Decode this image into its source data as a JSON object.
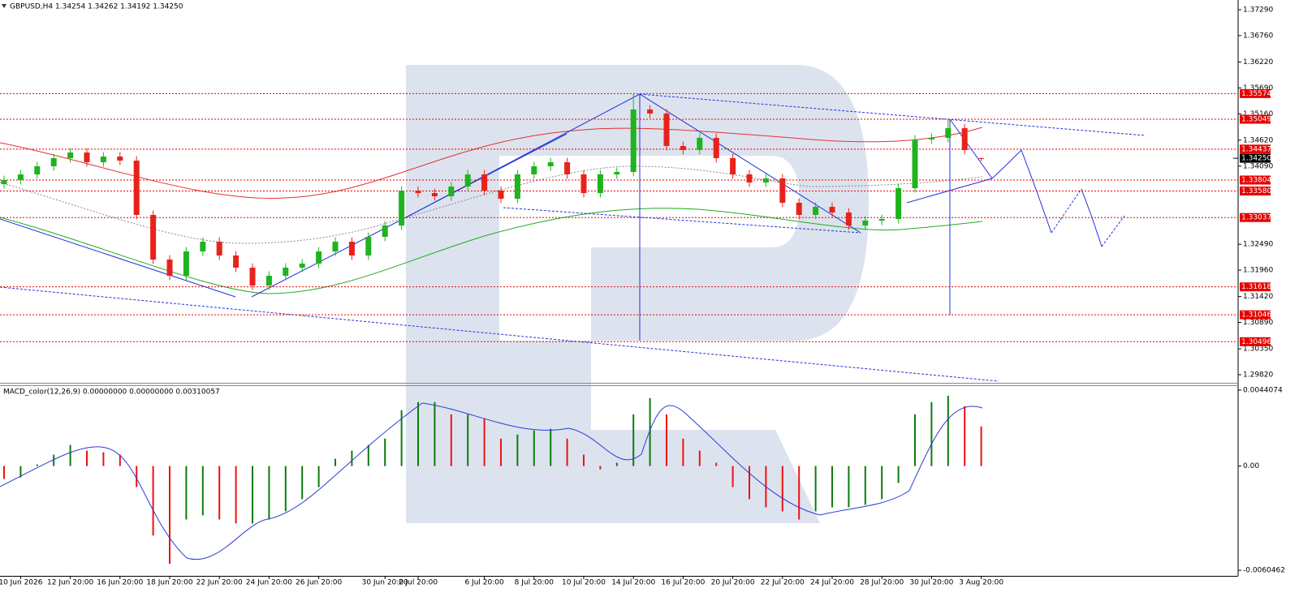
{
  "chart_data": [
    {
      "type": "candlestick",
      "title": "GBPUSD,H4  1.34254 1.34262 1.34192 1.34250",
      "categories": [
        null,
        "10 Jun 2026",
        null,
        null,
        "12 Jun 20:00",
        null,
        null,
        "16 Jun 20:00",
        null,
        null,
        "18 Jun 20:00",
        null,
        null,
        "22 Jun 20:00",
        null,
        null,
        "24 Jun 20:00",
        null,
        null,
        "26 Jun 20:00",
        null,
        null,
        null,
        "30 Jun 20:00",
        null,
        "2 Jul 20:00",
        null,
        null,
        null,
        "6 Jul 20:00",
        null,
        null,
        "8 Jul 20:00",
        null,
        null,
        "10 Jul 20:00",
        null,
        null,
        "14 Jul 20:00",
        null,
        null,
        "16 Jul 20:00",
        null,
        null,
        "20 Jul 20:00",
        null,
        null,
        "22 Jul 20:00",
        null,
        null,
        "24 Jul 20:00",
        null,
        null,
        "28 Jul 20:00",
        null,
        null,
        "30 Jul 20:00",
        null,
        null,
        "3 Aug 20:00"
      ],
      "open": [
        1.3372,
        1.33804,
        1.3392,
        1.34086,
        1.34252,
        1.34368,
        1.34169,
        1.34285,
        1.34202,
        1.3309,
        1.32177,
        1.31845,
        1.32343,
        1.32542,
        1.3226,
        1.32011,
        1.31646,
        1.31845,
        1.32011,
        1.32094,
        1.32343,
        1.32542,
        1.3226,
        1.32642,
        1.32874,
        1.33588,
        1.33538,
        1.33472,
        1.33671,
        1.3392,
        1.33588,
        1.33422,
        1.3392,
        1.34086,
        1.34169,
        1.3392,
        1.33538,
        1.3392,
        1.3397,
        1.35248,
        1.35165,
        1.34501,
        1.34418,
        1.34667,
        1.34252,
        1.3392,
        1.33754,
        1.33837,
        1.33339,
        1.3309,
        1.33256,
        1.3314,
        1.32874,
        1.32974,
        1.33007,
        1.33638,
        1.34634,
        1.34667,
        1.34866,
        1.34254
      ],
      "high": [
        1.33894,
        1.3401,
        1.34176,
        1.34342,
        1.34458,
        1.34458,
        1.34375,
        1.34375,
        1.34292,
        1.3318,
        1.32267,
        1.32433,
        1.32632,
        1.32632,
        1.3235,
        1.32101,
        1.31935,
        1.32101,
        1.32184,
        1.32433,
        1.32632,
        1.32632,
        1.32732,
        1.32964,
        1.33678,
        1.33678,
        1.33628,
        1.33761,
        1.3401,
        1.3401,
        1.33678,
        1.3401,
        1.34176,
        1.34259,
        1.34259,
        1.3401,
        1.3401,
        1.3406,
        1.35574,
        1.35338,
        1.35255,
        1.34591,
        1.34757,
        1.34757,
        1.34342,
        1.3401,
        1.33927,
        1.33927,
        1.33429,
        1.33346,
        1.33346,
        1.3323,
        1.33064,
        1.33097,
        1.33728,
        1.34724,
        1.34757,
        1.35049,
        1.34956,
        1.34262
      ],
      "low": [
        1.3363,
        1.33714,
        1.3383,
        1.33996,
        1.34162,
        1.34079,
        1.34079,
        1.34112,
        1.33,
        1.32087,
        1.31755,
        1.31755,
        1.32253,
        1.3217,
        1.31921,
        1.31556,
        1.31556,
        1.31755,
        1.31921,
        1.32004,
        1.32253,
        1.3217,
        1.3217,
        1.32552,
        1.32784,
        1.33448,
        1.33382,
        1.33382,
        1.33581,
        1.33498,
        1.33332,
        1.33332,
        1.3383,
        1.33996,
        1.3383,
        1.33448,
        1.33448,
        1.3383,
        1.3388,
        1.35075,
        1.34411,
        1.34328,
        1.34328,
        1.34162,
        1.3383,
        1.33664,
        1.33664,
        1.33249,
        1.33,
        1.33,
        1.3305,
        1.32784,
        1.32784,
        1.32884,
        1.32917,
        1.33548,
        1.34544,
        1.34577,
        1.34328,
        1.34192
      ],
      "close": [
        1.33804,
        1.3392,
        1.34086,
        1.34252,
        1.34368,
        1.34169,
        1.34285,
        1.34202,
        1.3309,
        1.32177,
        1.31845,
        1.32343,
        1.32542,
        1.3226,
        1.32011,
        1.31646,
        1.31845,
        1.32011,
        1.32094,
        1.32343,
        1.32542,
        1.3226,
        1.32642,
        1.32874,
        1.33588,
        1.33538,
        1.33472,
        1.33671,
        1.3392,
        1.33588,
        1.33422,
        1.3392,
        1.34086,
        1.34169,
        1.3392,
        1.33538,
        1.3392,
        1.3397,
        1.35248,
        1.35165,
        1.34501,
        1.34418,
        1.34667,
        1.34252,
        1.3392,
        1.33754,
        1.33837,
        1.33339,
        1.3309,
        1.33256,
        1.3314,
        1.32874,
        1.32974,
        1.33007,
        1.33638,
        1.34634,
        1.34667,
        1.34866,
        1.34418,
        1.3425
      ],
      "up_color": "#1fb31f",
      "down_color": "#e8221b",
      "ylim": [
        1.29654,
        1.37489
      ],
      "yticks": [
        {
          "value": 1.3729,
          "label": "1.37290"
        },
        {
          "value": 1.3676,
          "label": "1.36760"
        },
        {
          "value": 1.3622,
          "label": "1.36220"
        },
        {
          "value": 1.3569,
          "label": "1.35690"
        },
        {
          "value": 1.3516,
          "label": "1.35160"
        },
        {
          "value": 1.3462,
          "label": "1.34620"
        },
        {
          "value": 1.3409,
          "label": "1.34090"
        },
        {
          "value": 1.3249,
          "label": "1.32490"
        },
        {
          "value": 1.3196,
          "label": "1.31960"
        },
        {
          "value": 1.3142,
          "label": "1.31420"
        },
        {
          "value": 1.3089,
          "label": "1.30890"
        },
        {
          "value": 1.3035,
          "label": "1.30350"
        },
        {
          "value": 1.2982,
          "label": "1.29820"
        }
      ],
      "levels": [
        1.35574,
        1.35049,
        1.34437,
        1.33804,
        {
          "value": 1.3358,
          "label": "1.33580"
        },
        1.33037,
        1.31618,
        1.31046,
        1.30496
      ],
      "level_color": "#e60000",
      "current_price": {
        "value": 1.3425,
        "label": "1.34250"
      }
    },
    {
      "type": "macd_histogram",
      "title": "MACD_color(12,26,9) 0.00000000 0.00000000 0.00310057",
      "values": [
        -0.00075,
        -0.00066,
        9e-05,
        0.00066,
        0.00122,
        0.00089,
        0.0008,
        0.00066,
        -0.00122,
        -0.00403,
        -0.00567,
        -0.0031,
        -0.00286,
        -0.0031,
        -0.00333,
        -0.00333,
        -0.0031,
        -0.00263,
        -0.00192,
        -0.00122,
        0.00042,
        0.00089,
        0.00122,
        0.00159,
        0.00324,
        0.00371,
        0.00371,
        0.003,
        0.003,
        0.00277,
        0.00159,
        0.00183,
        0.00206,
        0.00216,
        0.00159,
        0.00066,
        -0.00019,
        0.00019,
        0.003,
        0.00394,
        0.003,
        0.00159,
        0.00089,
        0.00019,
        -0.00122,
        -0.00192,
        -0.00239,
        -0.00263,
        -0.0031,
        -0.00263,
        -0.00239,
        -0.00239,
        -0.00225,
        -0.00192,
        -0.00098,
        0.003,
        0.00371,
        0.00408,
        0.00347,
        0.0023
      ],
      "up_color": "#0a7d0a",
      "down_color": "#f01010",
      "ylim": [
        -0.00637,
        0.00464
      ],
      "yticks": [
        0.0044074,
        {
          "value": 0,
          "label": "0.00"
        },
        -0.0060462
      ]
    }
  ]
}
